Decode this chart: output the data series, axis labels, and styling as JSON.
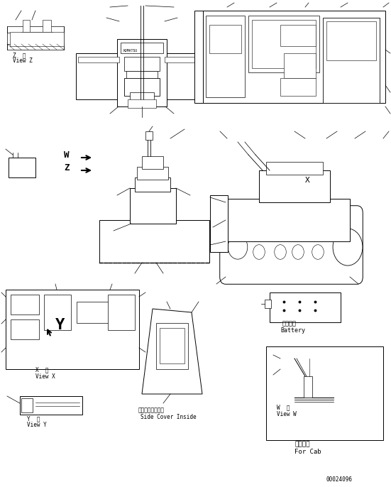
{
  "bg_color": "#ffffff",
  "line_color": "#000000",
  "fig_width": 5.51,
  "fig_height": 6.86,
  "dpi": 100,
  "watermark": "00024096",
  "label_z_jp": "Z  視",
  "label_z_en": "View Z",
  "label_x_jp": "X  視",
  "label_x_en": "View X",
  "label_y_jp": "Y  視",
  "label_y_en": "View Y",
  "label_w_jp": "W  視",
  "label_w_en": "View W",
  "label_side_jp": "サイドカバー内面",
  "label_side_en": "Side Cover Inside",
  "label_battery_jp": "バッテリ",
  "label_battery_en": "Battery",
  "label_cab_jp": "キャブ用",
  "label_cab_en": "For Cab",
  "label_W": "W",
  "label_Z": "Z",
  "label_X": "X"
}
